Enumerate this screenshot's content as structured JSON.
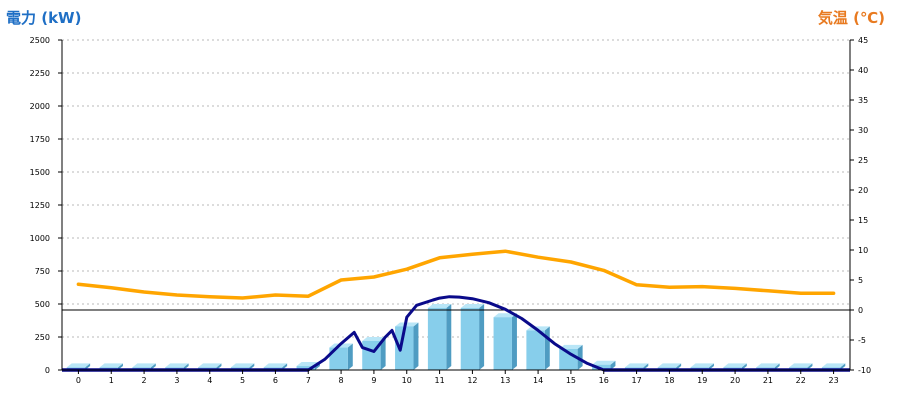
{
  "chart_data": {
    "type": "bar+line",
    "left_axis_title": "電力 (kW)",
    "right_axis_title": "気温 (℃)",
    "left_axis_color": "#1f6fc5",
    "right_axis_color": "#e87a20",
    "categories": [
      "0",
      "1",
      "2",
      "3",
      "4",
      "5",
      "6",
      "7",
      "8",
      "9",
      "10",
      "11",
      "12",
      "13",
      "14",
      "15",
      "16",
      "17",
      "18",
      "19",
      "20",
      "21",
      "22",
      "23"
    ],
    "ylim_left": [
      0,
      2500
    ],
    "yticks_left": [
      0,
      250,
      500,
      750,
      1000,
      1250,
      1500,
      1750,
      2000,
      2250,
      2500
    ],
    "ylim_right": [
      -10,
      45
    ],
    "yticks_right": [
      -10,
      -5,
      0,
      5,
      10,
      15,
      20,
      25,
      30,
      35,
      40,
      45
    ],
    "grid": true,
    "bars": {
      "axis": "left",
      "color": "#87ceeb",
      "values": [
        20,
        20,
        20,
        20,
        20,
        20,
        20,
        30,
        170,
        220,
        330,
        470,
        470,
        400,
        300,
        160,
        40,
        20,
        20,
        20,
        20,
        20,
        20,
        20
      ]
    },
    "temperature_line": {
      "axis": "right",
      "color": "#ffa500",
      "values": [
        4.3,
        3.7,
        3.0,
        2.5,
        2.2,
        2.0,
        2.5,
        2.3,
        5.0,
        5.5,
        6.8,
        8.7,
        9.3,
        9.8,
        8.8,
        8.0,
        6.6,
        4.2,
        3.8,
        3.9,
        3.6,
        3.2,
        2.8,
        2.8
      ]
    },
    "power_curve": {
      "axis": "left",
      "color": "#0a0a8a",
      "points": [
        [
          7,
          0
        ],
        [
          7.5,
          80
        ],
        [
          8,
          200
        ],
        [
          8.4,
          285
        ],
        [
          8.65,
          170
        ],
        [
          9,
          140
        ],
        [
          9.35,
          250
        ],
        [
          9.55,
          300
        ],
        [
          9.8,
          150
        ],
        [
          10,
          400
        ],
        [
          10.3,
          490
        ],
        [
          10.8,
          530
        ],
        [
          11,
          545
        ],
        [
          11.3,
          555
        ],
        [
          11.6,
          552
        ],
        [
          12,
          540
        ],
        [
          12.5,
          510
        ],
        [
          13,
          460
        ],
        [
          13.5,
          390
        ],
        [
          14,
          300
        ],
        [
          14.5,
          200
        ],
        [
          15,
          120
        ],
        [
          15.5,
          50
        ],
        [
          16,
          0
        ]
      ]
    },
    "zero_line": {
      "axis": "right",
      "value": 0
    }
  }
}
